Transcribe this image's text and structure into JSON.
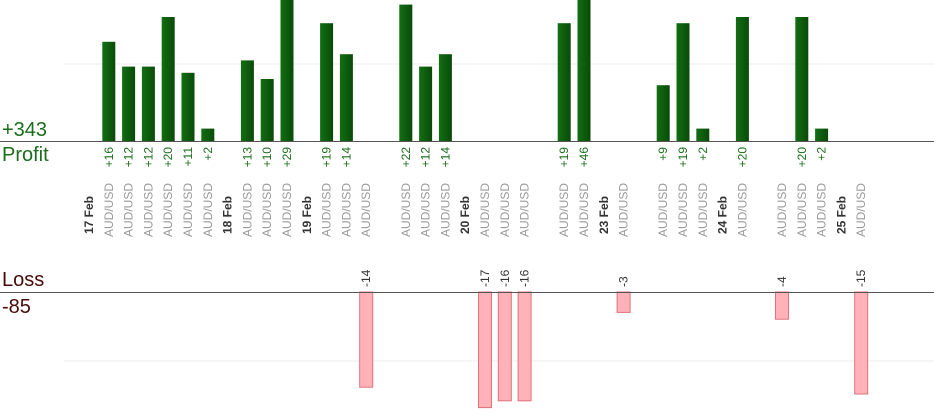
{
  "summary": {
    "profit_total": "+343",
    "profit_label": "Profit",
    "loss_label": "Loss",
    "loss_total": "-85"
  },
  "chart_data": {
    "type": "bar",
    "pair_label": "AUD/USD",
    "colors": {
      "profit": "#0f6b0f",
      "profit_dark": "#0a4d0a",
      "loss_fill": "#ffb3b8",
      "loss_stroke": "#e0707a",
      "profit_label": "#1a6e1a",
      "loss_label": "#333333",
      "date_label": "#333333",
      "pair_label": "#9a9a9a"
    },
    "days": [
      {
        "date": "17 Feb",
        "trades": [
          16,
          12,
          12,
          20,
          11,
          2
        ]
      },
      {
        "date": "18 Feb",
        "trades": [
          13,
          10,
          29
        ]
      },
      {
        "date": "19 Feb",
        "trades": [
          19,
          14,
          -14
        ]
      },
      {
        "date": "",
        "trades": [
          22,
          12,
          14
        ]
      },
      {
        "date": "20 Feb",
        "trades": [
          -17,
          -16,
          -16
        ]
      },
      {
        "date": "",
        "trades": [
          19,
          46
        ]
      },
      {
        "date": "23 Feb",
        "trades": [
          -3
        ]
      },
      {
        "date": "",
        "trades": [
          9,
          19,
          2
        ]
      },
      {
        "date": "24 Feb",
        "trades": [
          20
        ]
      },
      {
        "date": "",
        "trades": [
          -4,
          20,
          2
        ]
      },
      {
        "date": "25 Feb",
        "trades": [
          -15
        ]
      }
    ]
  }
}
